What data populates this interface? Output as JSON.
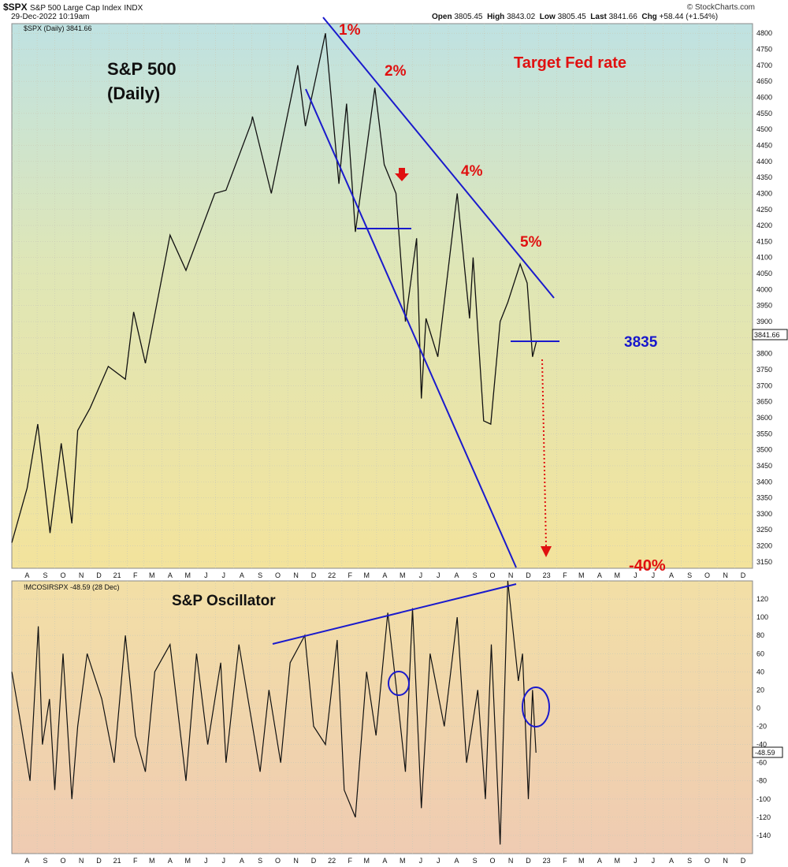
{
  "header": {
    "symbol": "$SPX",
    "name": "S&P 500 Large Cap Index",
    "exchange": "INDX",
    "datetime": "29-Dec-2022 10:19am",
    "open_label": "Open",
    "open": "3805.45",
    "high_label": "High",
    "high": "3843.02",
    "low_label": "Low",
    "low": "3805.45",
    "last_label": "Last",
    "last": "3841.66",
    "chg_label": "Chg",
    "chg": "+58.44 (+1.54%)",
    "brand": "© StockCharts.com"
  },
  "colors": {
    "price_line": "#111111",
    "trend_line": "#1a1acc",
    "annotation_red": "#e01010",
    "annotation_blue": "#1818cc"
  },
  "chart_data": [
    {
      "type": "line",
      "legend": "$SPX (Daily) 3841.66",
      "last_value_label": "3841.66",
      "ylim": [
        3130,
        4830
      ],
      "y_ticks": [
        3150,
        3200,
        3250,
        3300,
        3350,
        3400,
        3450,
        3500,
        3550,
        3600,
        3650,
        3700,
        3750,
        3800,
        3850,
        3900,
        3950,
        4000,
        4050,
        4100,
        4150,
        4200,
        4250,
        4300,
        4350,
        4400,
        4450,
        4500,
        4550,
        4600,
        4650,
        4700,
        4750,
        4800
      ],
      "x_range": [
        "2020-07-20",
        "2023-12-31"
      ],
      "x_month_labels": [
        "A",
        "S",
        "O",
        "N",
        "D",
        "21",
        "F",
        "M",
        "A",
        "M",
        "J",
        "J",
        "A",
        "S",
        "O",
        "N",
        "D",
        "22",
        "F",
        "M",
        "A",
        "M",
        "J",
        "J",
        "A",
        "S",
        "O",
        "N",
        "D",
        "23",
        "F",
        "M",
        "A",
        "M",
        "J",
        "J",
        "A",
        "S",
        "O",
        "N",
        "D"
      ],
      "x": [
        "2020-07-20",
        "2020-08-15",
        "2020-09-02",
        "2020-09-23",
        "2020-10-12",
        "2020-10-30",
        "2020-11-09",
        "2020-11-30",
        "2020-12-31",
        "2021-01-29",
        "2021-02-12",
        "2021-03-04",
        "2021-04-15",
        "2021-05-12",
        "2021-06-30",
        "2021-07-19",
        "2021-08-31",
        "2021-09-02",
        "2021-10-04",
        "2021-11-18",
        "2021-12-01",
        "2022-01-04",
        "2022-01-27",
        "2022-02-09",
        "2022-02-24",
        "2022-03-29",
        "2022-04-14",
        "2022-05-04",
        "2022-05-20",
        "2022-06-08",
        "2022-06-16",
        "2022-06-24",
        "2022-07-14",
        "2022-08-16",
        "2022-09-06",
        "2022-09-12",
        "2022-09-30",
        "2022-10-12",
        "2022-10-28",
        "2022-11-10",
        "2022-12-01",
        "2022-12-13",
        "2022-12-22",
        "2022-12-29"
      ],
      "values": [
        3210,
        3380,
        3580,
        3240,
        3520,
        3270,
        3560,
        3630,
        3760,
        3720,
        3930,
        3770,
        4170,
        4060,
        4300,
        4310,
        4520,
        4540,
        4300,
        4700,
        4510,
        4800,
        4330,
        4580,
        4180,
        4630,
        4390,
        4300,
        3900,
        4160,
        3660,
        3910,
        3790,
        4300,
        3910,
        4100,
        3590,
        3580,
        3900,
        3960,
        4080,
        4020,
        3790,
        3841
      ]
    },
    {
      "type": "line",
      "legend": "!MCOSIRSPX -48.59 (28 Dec)",
      "last_value_label": "-48.59",
      "ylim": [
        -160,
        140
      ],
      "y_ticks": [
        -140,
        -120,
        -100,
        -80,
        -60,
        -40,
        -20,
        0,
        20,
        40,
        60,
        80,
        100,
        120
      ],
      "x": [
        "2020-07-20",
        "2020-08-05",
        "2020-08-20",
        "2020-09-03",
        "2020-09-10",
        "2020-09-22",
        "2020-10-01",
        "2020-10-15",
        "2020-10-30",
        "2020-11-09",
        "2020-11-25",
        "2020-12-20",
        "2021-01-10",
        "2021-01-29",
        "2021-02-15",
        "2021-03-04",
        "2021-03-20",
        "2021-04-15",
        "2021-05-12",
        "2021-05-30",
        "2021-06-18",
        "2021-07-10",
        "2021-07-19",
        "2021-08-10",
        "2021-09-15",
        "2021-09-30",
        "2021-10-20",
        "2021-11-05",
        "2021-11-30",
        "2021-12-15",
        "2022-01-04",
        "2022-01-24",
        "2022-02-05",
        "2022-02-24",
        "2022-03-15",
        "2022-03-31",
        "2022-04-20",
        "2022-05-05",
        "2022-05-20",
        "2022-06-01",
        "2022-06-16",
        "2022-07-01",
        "2022-07-25",
        "2022-08-16",
        "2022-09-01",
        "2022-09-20",
        "2022-10-03",
        "2022-10-13",
        "2022-10-28",
        "2022-11-10",
        "2022-11-28",
        "2022-12-05",
        "2022-12-15",
        "2022-12-22",
        "2022-12-28"
      ],
      "values": [
        40,
        -20,
        -80,
        90,
        -40,
        10,
        -90,
        60,
        -100,
        -20,
        60,
        10,
        -60,
        80,
        -30,
        -70,
        40,
        70,
        -80,
        60,
        -40,
        50,
        -60,
        70,
        -70,
        20,
        -60,
        50,
        80,
        -20,
        -40,
        75,
        -90,
        -120,
        40,
        -30,
        105,
        20,
        -70,
        110,
        -110,
        60,
        -20,
        100,
        -60,
        20,
        -100,
        70,
        -150,
        140,
        30,
        60,
        -100,
        20,
        -49
      ]
    }
  ],
  "annotations": {
    "title_line1": "S&P 500",
    "title_line2": "(Daily)",
    "target_fed_rate": "Target Fed rate",
    "rate_1": "1%",
    "rate_2": "2%",
    "rate_4": "4%",
    "rate_5": "5%",
    "level_3835": "3835",
    "minus_40": "-40%",
    "oscillator_title": "S&P Oscillator"
  }
}
